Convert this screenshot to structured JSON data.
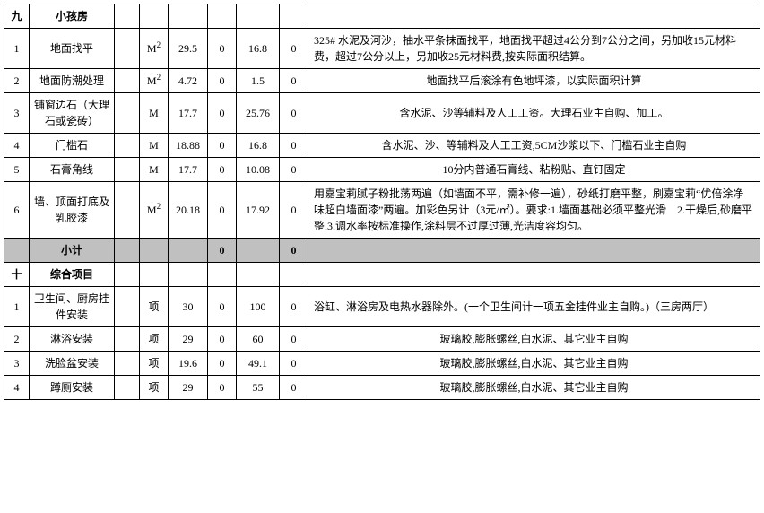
{
  "section9": {
    "idx": "九",
    "title": "小孩房",
    "rows": [
      {
        "n": "1",
        "name": "地面找平",
        "unit": "M²",
        "qty": "29.5",
        "z1": "0",
        "price": "16.8",
        "z2": "0",
        "desc": "325# 水泥及河沙，抽水平条抹面找平，地面找平超过4公分到7公分之间，另加收15元材料费，超过7公分以上，另加收25元材料费,按实际面积结算。",
        "descAlign": "left"
      },
      {
        "n": "2",
        "name": "地面防潮处理",
        "unit": "M²",
        "qty": "4.72",
        "z1": "0",
        "price": "1.5",
        "z2": "0",
        "desc": "地面找平后滚涂有色地坪漆，以实际面积计算",
        "descAlign": "center"
      },
      {
        "n": "3",
        "name": "铺窗边石（大理石或瓷砖）",
        "unit": "M",
        "qty": "17.7",
        "z1": "0",
        "price": "25.76",
        "z2": "0",
        "desc": "含水泥、沙等辅料及人工工资。大理石业主自购、加工。",
        "descAlign": "center"
      },
      {
        "n": "4",
        "name": "门槛石",
        "unit": "M",
        "qty": "18.88",
        "z1": "0",
        "price": "16.8",
        "z2": "0",
        "desc": "含水泥、沙、等辅料及人工工资,5CM沙浆以下、门槛石业主自购",
        "descAlign": "center"
      },
      {
        "n": "5",
        "name": "石膏角线",
        "unit": "M",
        "qty": "17.7",
        "z1": "0",
        "price": "10.08",
        "z2": "0",
        "desc": "10分内普通石膏线、粘粉贴、直钉固定",
        "descAlign": "center"
      },
      {
        "n": "6",
        "name": "墙、顶面打底及乳胶漆",
        "unit": "M²",
        "qty": "20.18",
        "z1": "0",
        "price": "17.92",
        "z2": "0",
        "desc": "用嘉宝莉腻子粉批荡两遍（如墙面不平，需补修一遍），砂纸打磨平整，刷嘉宝莉“优倍涂净味超白墙面漆”两遍。加彩色另计（3元/㎡）。要求:1.墙面基础必须平整光滑　2.干燥后,砂磨平整.3.调水率按标准操作,涂料层不过厚过薄,光洁度容均匀。",
        "descAlign": "left"
      }
    ],
    "subtotal": {
      "label": "小计",
      "z1": "0",
      "z2": "0"
    }
  },
  "section10": {
    "idx": "十",
    "title": "综合项目",
    "rows": [
      {
        "n": "1",
        "name": "卫生间、厨房挂件安装",
        "unit": "项",
        "qty": "30",
        "z1": "0",
        "price": "100",
        "z2": "0",
        "desc": "浴缸、淋浴房及电热水器除外。(一个卫生间计一项五金挂件业主自购。)（三房两厅）",
        "descAlign": "left"
      },
      {
        "n": "2",
        "name": "淋浴安装",
        "unit": "项",
        "qty": "29",
        "z1": "0",
        "price": "60",
        "z2": "0",
        "desc": "玻璃胶,膨胀螺丝,白水泥、其它业主自购",
        "descAlign": "center"
      },
      {
        "n": "3",
        "name": "洗脸盆安装",
        "unit": "项",
        "qty": "19.6",
        "z1": "0",
        "price": "49.1",
        "z2": "0",
        "desc": "玻璃胶,膨胀螺丝,白水泥、其它业主自购",
        "descAlign": "center"
      },
      {
        "n": "4",
        "name": "蹲厕安装",
        "unit": "项",
        "qty": "29",
        "z1": "0",
        "price": "55",
        "z2": "0",
        "desc": "玻璃胶,膨胀螺丝,白水泥、其它业主自购",
        "descAlign": "center"
      }
    ]
  }
}
